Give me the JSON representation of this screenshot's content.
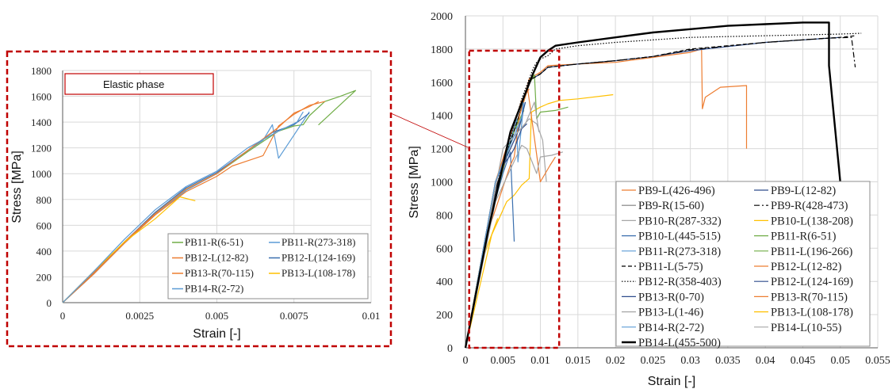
{
  "colors": {
    "orange": "#ED7D31",
    "darkblue": "#2E4C8C",
    "gray": "#7F7F7F",
    "black": "#000000",
    "lightgray": "#A6A6A6",
    "gold": "#FFC000",
    "steelblue": "#3A6FAE",
    "green": "#70AD47",
    "lightblue": "#5B9BD5",
    "red": "#C00000"
  },
  "chart_data": [
    {
      "type": "line",
      "xlabel": "Strain [-]",
      "ylabel": "Stress [MPa]",
      "xlim": [
        0,
        0.055
      ],
      "ylim": [
        0,
        2000
      ],
      "xticks": [
        "0",
        "0.005",
        "0.01",
        "0.015",
        "0.02",
        "0.025",
        "0.03",
        "0.035",
        "0.04",
        "0.045",
        "0.05",
        "0.055"
      ],
      "yticks": [
        "0",
        "200",
        "400",
        "600",
        "800",
        "1000",
        "1200",
        "1400",
        "1600",
        "1800",
        "2000"
      ],
      "grid": true,
      "legend_position": "bottom-right",
      "highlight_box": {
        "x": [
          0.0005,
          0.0125
        ],
        "y": [
          0,
          1790
        ]
      },
      "series": [
        {
          "name": "PB9-L(426-496)",
          "color": "orange",
          "dash": "solid",
          "width": 1.2,
          "x": [
            0,
            0.004,
            0.0075,
            0.0085,
            0.01,
            0.011,
            0.015,
            0.02,
            0.025,
            0.03,
            0.0315,
            0.0316,
            0.032,
            0.034,
            0.0375,
            0.0375
          ],
          "y": [
            0,
            950,
            1450,
            1620,
            1660,
            1700,
            1710,
            1720,
            1750,
            1780,
            1800,
            1440,
            1510,
            1570,
            1580,
            1200
          ]
        },
        {
          "name": "PB9-L(12-82)",
          "color": "darkblue",
          "dash": "solid",
          "width": 1.2,
          "x": [
            0,
            0.004,
            0.0075,
            0.0085,
            0.01,
            0.011,
            0.015,
            0.02,
            0.025,
            0.03,
            0.04,
            0.05
          ],
          "y": [
            0,
            950,
            1450,
            1610,
            1650,
            1690,
            1710,
            1730,
            1755,
            1790,
            1840,
            1870
          ]
        },
        {
          "name": "PB9-R(15-60)",
          "color": "gray",
          "dash": "solid",
          "width": 1.2,
          "x": [
            0,
            0.003,
            0.0055,
            0.0065,
            0.007,
            0.0075
          ],
          "y": [
            0,
            720,
            1150,
            1350,
            1300,
            1380
          ]
        },
        {
          "name": "PB9-R(428-473)",
          "color": "black",
          "dash": "dashdot",
          "width": 1.2,
          "x": [
            0,
            0.004,
            0.0075,
            0.0085,
            0.01,
            0.011,
            0.015,
            0.02,
            0.025,
            0.03,
            0.04,
            0.048,
            0.0515,
            0.052
          ],
          "y": [
            0,
            950,
            1450,
            1610,
            1650,
            1690,
            1710,
            1730,
            1755,
            1795,
            1840,
            1865,
            1870,
            1690
          ]
        },
        {
          "name": "PB10-R(287-332)",
          "color": "lightgray",
          "dash": "solid",
          "width": 1.2,
          "x": [
            0,
            0.004,
            0.007,
            0.0085,
            0.0095,
            0.0103,
            0.0108
          ],
          "y": [
            0,
            1000,
            1300,
            1380,
            1350,
            1250,
            1000
          ]
        },
        {
          "name": "PB10-L(138-208)",
          "color": "gold",
          "dash": "solid",
          "width": 1.2,
          "x": [
            0,
            0.0035,
            0.0055,
            0.0065,
            0.0075,
            0.0085,
            0.0088,
            0.01,
            0.011,
            0.0125,
            0.015,
            0.0197
          ],
          "y": [
            0,
            680,
            880,
            920,
            980,
            1020,
            1420,
            1450,
            1470,
            1490,
            1500,
            1525
          ]
        },
        {
          "name": "PB10-L(445-515)",
          "color": "steelblue",
          "dash": "solid",
          "width": 1.2,
          "x": [
            0,
            0.003,
            0.005,
            0.006,
            0.0065
          ],
          "y": [
            0,
            730,
            1050,
            1180,
            640
          ]
        },
        {
          "name": "PB11-R(6-51)",
          "color": "green",
          "dash": "solid",
          "width": 1.2,
          "x": [
            0,
            0.004,
            0.007,
            0.0085,
            0.0092,
            0.0095,
            0.01,
            0.012,
            0.0137
          ],
          "y": [
            0,
            1000,
            1370,
            1590,
            1645,
            1380,
            1420,
            1430,
            1450
          ]
        },
        {
          "name": "PB11-R(273-318)",
          "color": "lightblue",
          "dash": "solid",
          "width": 1.2,
          "x": [
            0,
            0.004,
            0.006,
            0.0068,
            0.007,
            0.0078
          ],
          "y": [
            0,
            1000,
            1250,
            1380,
            1120,
            1480
          ]
        },
        {
          "name": "PB11-L(196-266)",
          "color": "green",
          "dash": "solid",
          "width": 1.2,
          "x": [
            0,
            0.003,
            0.005,
            0.0065,
            0.0078
          ],
          "y": [
            0,
            700,
            1080,
            1310,
            1430
          ]
        },
        {
          "name": "PB11-L(5-75)",
          "color": "black",
          "dash": "dashed",
          "width": 1.2,
          "x": [
            0,
            0.004,
            0.0075,
            0.0085,
            0.01,
            0.011,
            0.015,
            0.02,
            0.025,
            0.03,
            0.04,
            0.05,
            0.052
          ],
          "y": [
            0,
            950,
            1450,
            1610,
            1650,
            1690,
            1710,
            1730,
            1755,
            1800,
            1840,
            1870,
            1880
          ]
        },
        {
          "name": "PB12-L(12-82)",
          "color": "orange",
          "dash": "solid",
          "width": 1.2,
          "x": [
            0,
            0.003,
            0.006,
            0.0065,
            0.0072,
            0.0083,
            0.01,
            0.0113,
            0.012
          ],
          "y": [
            0,
            700,
            1100,
            1150,
            1400,
            1560,
            1000,
            1100,
            1150
          ]
        },
        {
          "name": "PB12-R(358-403)",
          "color": "black",
          "dash": "dotted",
          "width": 1.2,
          "x": [
            0,
            0.004,
            0.0075,
            0.009,
            0.0095,
            0.01,
            0.011,
            0.012,
            0.015,
            0.02,
            0.03,
            0.04,
            0.05,
            0.0528
          ],
          "y": [
            0,
            950,
            1500,
            1680,
            1720,
            1740,
            1760,
            1800,
            1820,
            1840,
            1870,
            1880,
            1890,
            1895
          ]
        },
        {
          "name": "PB12-L(124-169)",
          "color": "darkblue",
          "dash": "solid",
          "width": 1.2,
          "x": [
            0,
            0.004,
            0.007,
            0.008
          ],
          "y": [
            0,
            1000,
            1300,
            1480
          ]
        },
        {
          "name": "PB13-R(0-70)",
          "color": "darkblue",
          "dash": "solid",
          "width": 1.2,
          "x": [
            0,
            0.0025,
            0.004,
            0.005,
            0.006,
            0.0065,
            0.0075,
            0.0082
          ],
          "y": [
            0,
            620,
            920,
            1100,
            1160,
            1200,
            1320,
            1350
          ]
        },
        {
          "name": "PB13-R(70-115)",
          "color": "orange",
          "dash": "solid",
          "width": 1.2,
          "x": [
            0,
            0.004,
            0.0075,
            0.0085
          ],
          "y": [
            0,
            1000,
            1490,
            1560
          ]
        },
        {
          "name": "PB13-L(1-46)",
          "color": "lightgray",
          "dash": "solid",
          "width": 1.2,
          "x": [
            0,
            0.005,
            0.008,
            0.0092,
            0.0098
          ],
          "y": [
            0,
            1200,
            1350,
            1480,
            1300
          ]
        },
        {
          "name": "PB13-L(108-178)",
          "color": "gold",
          "dash": "solid",
          "width": 1.2,
          "x": [
            0,
            0.002,
            0.0043
          ],
          "y": [
            0,
            500,
            780
          ]
        },
        {
          "name": "PB14-R(2-72)",
          "color": "lightblue",
          "dash": "solid",
          "width": 1.2,
          "x": [
            0,
            0.004,
            0.0075,
            0.0077
          ],
          "y": [
            0,
            1000,
            1390,
            1480
          ]
        },
        {
          "name": "PB14-L(10-55)",
          "color": "lightgray",
          "dash": "solid",
          "width": 1.2,
          "x": [
            0,
            0.004,
            0.0075,
            0.0082,
            0.0095,
            0.01,
            0.0115,
            0.013
          ],
          "y": [
            0,
            880,
            1220,
            1200,
            1050,
            1150,
            1160,
            1180
          ]
        },
        {
          "name": "PB14-L(455-500)",
          "color": "black",
          "dash": "solid",
          "width": 2.4,
          "x": [
            0,
            0.003,
            0.006,
            0.009,
            0.0095,
            0.01,
            0.0105,
            0.011,
            0.012,
            0.015,
            0.02,
            0.025,
            0.03,
            0.035,
            0.04,
            0.045,
            0.0478,
            0.0485,
            0.0485,
            0.05
          ],
          "y": [
            0,
            700,
            1300,
            1650,
            1700,
            1750,
            1770,
            1790,
            1820,
            1840,
            1870,
            1900,
            1920,
            1940,
            1950,
            1960,
            1960,
            1960,
            1700,
            1000
          ]
        }
      ]
    },
    {
      "type": "line",
      "xlabel": "Strain [-]",
      "ylabel": "Stress [MPa]",
      "xlim": [
        0,
        0.01
      ],
      "ylim": [
        0,
        1800
      ],
      "xticks": [
        "0",
        "0.0025",
        "0.005",
        "0.0075",
        "0.01"
      ],
      "yticks": [
        "0",
        "200",
        "400",
        "600",
        "800",
        "1000",
        "1200",
        "1400",
        "1600",
        "1800"
      ],
      "grid": true,
      "annotation": "Elastic phase",
      "legend_position": "bottom-right",
      "series": [
        {
          "name": "PB11-R(6-51)",
          "color": "green",
          "x": [
            0,
            0.001,
            0.002,
            0.003,
            0.004,
            0.005,
            0.006,
            0.0065,
            0.007,
            0.0075,
            0.0078,
            0.008,
            0.0085,
            0.009,
            0.0095,
            0.0083,
            0.0095
          ],
          "y": [
            0,
            230,
            470,
            690,
            880,
            1000,
            1170,
            1250,
            1330,
            1370,
            1380,
            1450,
            1560,
            1600,
            1645,
            1380,
            1645
          ]
        },
        {
          "name": "PB11-R(273-318)",
          "color": "lightblue",
          "x": [
            0,
            0.001,
            0.002,
            0.003,
            0.004,
            0.005,
            0.006,
            0.0065,
            0.0068,
            0.007,
            0.0075,
            0.008
          ],
          "y": [
            0,
            220,
            460,
            680,
            870,
            1000,
            1180,
            1260,
            1380,
            1120,
            1300,
            1480
          ]
        },
        {
          "name": "PB12-L(12-82)",
          "color": "orange",
          "x": [
            0,
            0.001,
            0.002,
            0.003,
            0.004,
            0.005,
            0.0055,
            0.006,
            0.0065,
            0.007,
            0.0075,
            0.008,
            0.0085
          ],
          "y": [
            0,
            220,
            460,
            680,
            860,
            980,
            1060,
            1100,
            1140,
            1370,
            1460,
            1530,
            1560
          ]
        },
        {
          "name": "PB12-L(124-169)",
          "color": "steelblue",
          "x": [
            0,
            0.001,
            0.002,
            0.003,
            0.004,
            0.005,
            0.006,
            0.0068,
            0.0075,
            0.008
          ],
          "y": [
            0,
            230,
            470,
            700,
            890,
            1010,
            1180,
            1320,
            1380,
            1470
          ]
        },
        {
          "name": "PB13-R(70-115)",
          "color": "orange",
          "x": [
            0,
            0.001,
            0.002,
            0.003,
            0.004,
            0.005,
            0.006,
            0.007,
            0.0075,
            0.008,
            0.0083
          ],
          "y": [
            0,
            230,
            470,
            690,
            880,
            1000,
            1180,
            1360,
            1470,
            1520,
            1560
          ]
        },
        {
          "name": "PB13-L(108-178)",
          "color": "gold",
          "x": [
            0,
            0.001,
            0.002,
            0.003,
            0.0038,
            0.0043
          ],
          "y": [
            0,
            240,
            470,
            650,
            820,
            790
          ]
        },
        {
          "name": "PB14-R(2-72)",
          "color": "lightblue",
          "x": [
            0,
            0.001,
            0.002,
            0.003,
            0.004,
            0.005,
            0.006,
            0.007,
            0.0076,
            0.0078
          ],
          "y": [
            0,
            240,
            490,
            720,
            900,
            1020,
            1200,
            1330,
            1400,
            1480
          ]
        }
      ]
    }
  ]
}
